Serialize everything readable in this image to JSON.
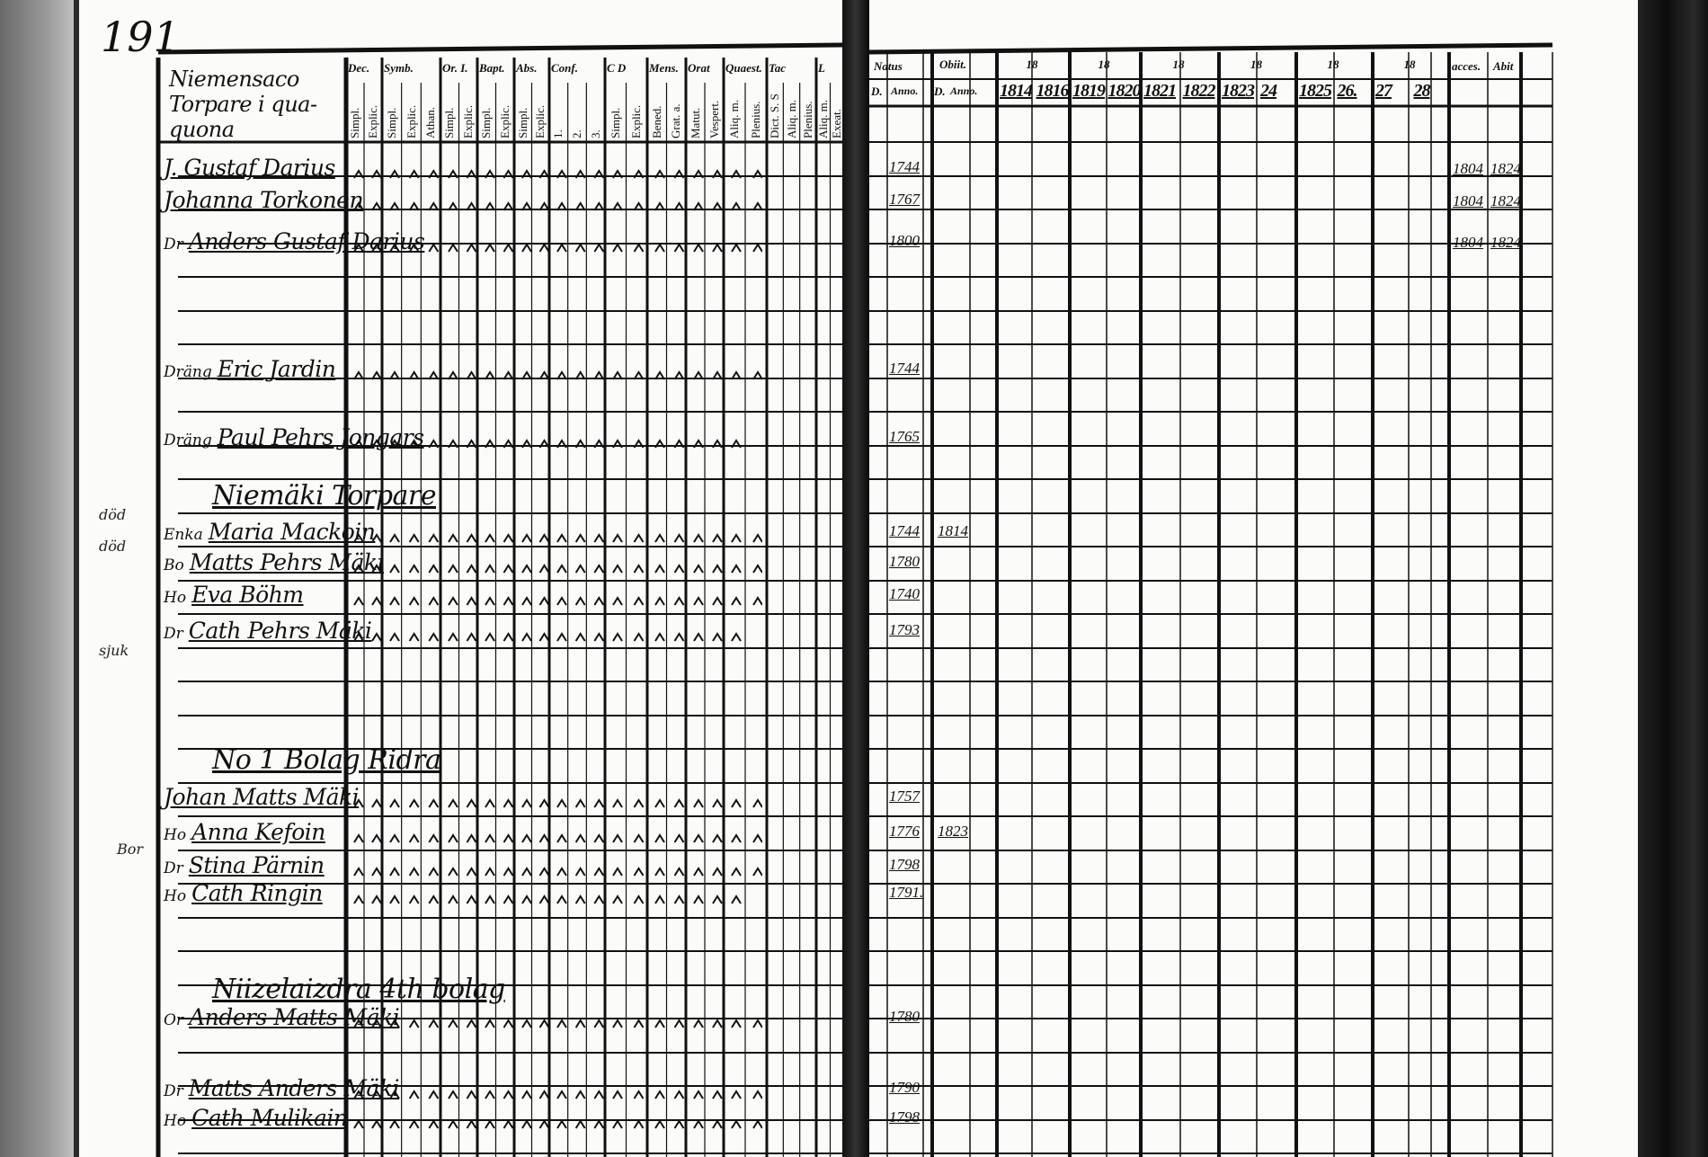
{
  "page_number": "191",
  "left_page": {
    "title": "Niemensaco Torpare i qua- quona",
    "column_groups": [
      {
        "label": "Dec.",
        "subs": [
          "Simpl.",
          "Explic."
        ]
      },
      {
        "label": "Symb.",
        "subs": [
          "Simpl.",
          "Explic.",
          "Athan."
        ]
      },
      {
        "label": "Or. I.",
        "subs": [
          "Simpl.",
          "Explic."
        ]
      },
      {
        "label": "Bapt.",
        "subs": [
          "Simpl.",
          "Explic."
        ]
      },
      {
        "label": "Abs.",
        "subs": [
          "Simpl.",
          "Explic."
        ]
      },
      {
        "label": "Conf.",
        "subs": [
          "1.",
          "2.",
          "3."
        ]
      },
      {
        "label": "C D",
        "subs": [
          "Simpl.",
          "Explic."
        ]
      },
      {
        "label": "Mens.",
        "subs": [
          "Bened.",
          "Grat. a."
        ]
      },
      {
        "label": "Orat",
        "subs": [
          "Matut.",
          "Vespert."
        ]
      },
      {
        "label": "Quaest.",
        "subs": [
          "Aliq. m.",
          "Plenius."
        ]
      },
      {
        "label": "Tac",
        "subs": [
          "Dict. S. S",
          "Aliq. m.",
          "Plenius."
        ]
      },
      {
        "label": "L",
        "subs": [
          "Aliq. m.",
          "Exeat."
        ]
      }
    ]
  },
  "right_page": {
    "headers": {
      "natus": "Natus",
      "natus_d": "D.",
      "natus_anno": "Anno.",
      "obiit": "Obiit.",
      "obiit_d": "D.",
      "obiit_anno": "Anno.",
      "accesit": "acces.",
      "abiit": "Abit"
    },
    "year_groups": [
      {
        "century": "18",
        "years": [
          "1814",
          "1816"
        ]
      },
      {
        "century": "18",
        "years": [
          "1819",
          "1820"
        ]
      },
      {
        "century": "18",
        "years": [
          "1821",
          "1822"
        ]
      },
      {
        "century": "18",
        "years": [
          "1823",
          "24"
        ]
      },
      {
        "century": "18",
        "years": [
          "1825",
          "26."
        ]
      },
      {
        "century": "18",
        "years": [
          "27",
          "28"
        ]
      }
    ]
  },
  "entries": [
    {
      "prefix": "",
      "name": "J. Gustaf Darius",
      "born": "1744",
      "obiit": "",
      "accesit": "1804",
      "abiit": "1824"
    },
    {
      "prefix": "",
      "name": "Johanna Torkonen",
      "born": "1767",
      "obiit": "",
      "accesit": "1804",
      "abiit": "1824"
    },
    {
      "prefix": "Dr",
      "name": "Anders Gustaf Darius",
      "born": "1800",
      "obiit": "",
      "accesit": "1804",
      "abiit": "1824"
    },
    {
      "prefix": "Dräng",
      "name": "Eric Jardin",
      "born": "1744",
      "obiit": "",
      "accesit": "",
      "abiit": ""
    },
    {
      "prefix": "Dräng",
      "name": "Paul Pehrs Jongars",
      "born": "1765",
      "obiit": "",
      "accesit": "",
      "abiit": ""
    },
    {
      "section": "Niemäki Torpare"
    },
    {
      "prefix": "Enka",
      "name": "Maria Mackoin",
      "born": "1744",
      "obiit": "1814",
      "accesit": "",
      "abiit": ""
    },
    {
      "prefix": "Bo",
      "name": "Matts Pehrs Mäki",
      "born": "1780",
      "obiit": "",
      "accesit": "",
      "abiit": ""
    },
    {
      "prefix": "Ho",
      "name": "Eva Böhm",
      "born": "1740",
      "obiit": "",
      "accesit": "",
      "abiit": ""
    },
    {
      "prefix": "Dr",
      "name": "Cath Pehrs Mäki",
      "born": "1793",
      "obiit": "",
      "accesit": "",
      "abiit": ""
    },
    {
      "section": "No 1 Bolag Ridra"
    },
    {
      "prefix": "",
      "name": "Johan Matts Mäki",
      "born": "1757",
      "obiit": "",
      "accesit": "",
      "abiit": ""
    },
    {
      "prefix": "Ho",
      "name": "Anna Kefoin",
      "born": "1776",
      "obiit": "1823",
      "accesit": "",
      "abiit": ""
    },
    {
      "prefix": "Dr",
      "name": "Stina Pärnin",
      "born": "1798",
      "obiit": "",
      "accesit": "",
      "abiit": ""
    },
    {
      "prefix": "Ho",
      "name": "Cath Ringin",
      "born": "1791.",
      "obiit": "",
      "accesit": "",
      "abiit": ""
    },
    {
      "section": "Niizelaizdra 4th bolag"
    },
    {
      "prefix": "Or",
      "name": "Anders Matts Mäki",
      "born": "1780",
      "obiit": "",
      "accesit": "",
      "abiit": ""
    },
    {
      "prefix": "Dr",
      "name": "Matts Anders Mäki",
      "born": "1790",
      "obiit": "",
      "accesit": "",
      "abiit": ""
    },
    {
      "prefix": "Ho",
      "name": "Cath Mulikain",
      "born": "1798",
      "obiit": "",
      "accesit": "",
      "abiit": ""
    }
  ],
  "margin_notes": [
    "död",
    "död",
    "sjuk",
    "Bor"
  ],
  "page_colors": {
    "paper": "#fbfbf9",
    "ink": "#111111",
    "binding": "#111111"
  }
}
